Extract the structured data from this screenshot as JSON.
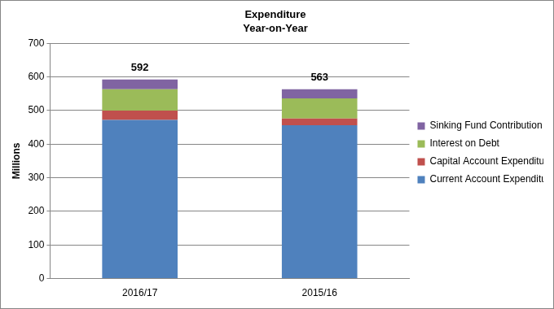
{
  "chart_data": {
    "type": "bar",
    "title": "Expenditure",
    "subtitle": "Year-on-Year",
    "y_label": "Millions",
    "categories": [
      "2016/17",
      "2015/16"
    ],
    "series": [
      {
        "name": "Current Account Expenditure",
        "color": "#4f81bd",
        "values": [
          472,
          456
        ]
      },
      {
        "name": "Capital Account Expenditure",
        "color": "#c0504d",
        "values": [
          28,
          20
        ]
      },
      {
        "name": "Interest on Debt",
        "color": "#9bbb59",
        "values": [
          63,
          60
        ]
      },
      {
        "name": "Sinking Fund Contribution",
        "color": "#8064a2",
        "values": [
          29,
          27
        ]
      }
    ],
    "totals": [
      592,
      563
    ],
    "stacked": true,
    "ylim": [
      0,
      700
    ],
    "yticks": [
      0,
      100,
      200,
      300,
      400,
      500,
      600,
      700
    ],
    "grid": true,
    "legend": "right"
  }
}
